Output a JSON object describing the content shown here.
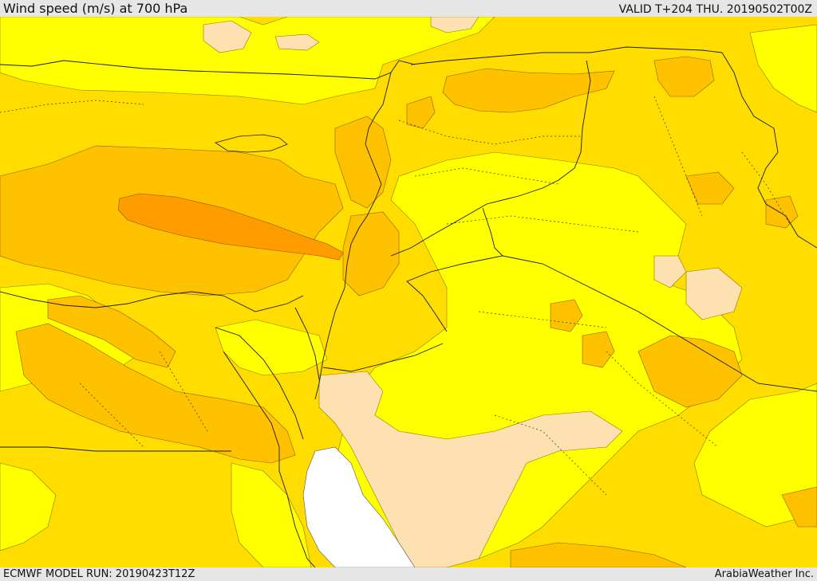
{
  "header": {
    "title": "Wind speed (m/s) at 700 hPa",
    "valid": "VALID T+204 THU. 20190502T00Z"
  },
  "footer": {
    "model_run": "ECMWF MODEL RUN: 20190423T12Z",
    "credit": "ArabiaWeather Inc."
  },
  "colors": {
    "level_0": "#ffffff",
    "level_1": "#fde1b0",
    "level_2": "#ffff00",
    "level_3": "#ffdd00",
    "level_4": "#ffc200",
    "level_5": "#ffa800",
    "level_6": "#ff9400",
    "border": "#1a1a1a"
  }
}
